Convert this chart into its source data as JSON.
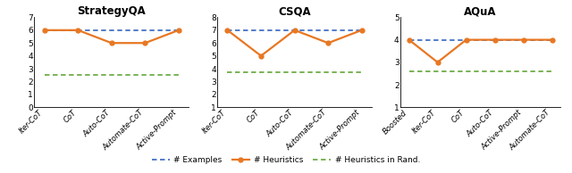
{
  "plots": [
    {
      "title": "StrategyQA",
      "x_labels": [
        "Iter-CoT",
        "CoT",
        "Auto-CoT",
        "Automate-CoT",
        "Active-Prompt"
      ],
      "heuristics": [
        6,
        6,
        5,
        5,
        6
      ],
      "examples": [
        6,
        6,
        6,
        6,
        6
      ],
      "heuristics_rand": [
        2.5,
        2.5,
        2.5,
        2.5,
        2.5
      ],
      "ylim": [
        0,
        7
      ],
      "yticks": [
        0,
        1,
        2,
        3,
        4,
        5,
        6,
        7
      ]
    },
    {
      "title": "CSQA",
      "x_labels": [
        "Iter-CoT",
        "CoT",
        "Auto-CoT",
        "Automate-CoT",
        "Active-Prompt"
      ],
      "heuristics": [
        7,
        5,
        7,
        6,
        7
      ],
      "examples": [
        7,
        7,
        7,
        7,
        7
      ],
      "heuristics_rand": [
        3.7,
        3.7,
        3.7,
        3.7,
        3.7
      ],
      "ylim": [
        1,
        8
      ],
      "yticks": [
        1,
        2,
        3,
        4,
        5,
        6,
        7,
        8
      ]
    },
    {
      "title": "AQuA",
      "x_labels": [
        "Boosted",
        "Iter-CoT",
        "CoT",
        "Auto-CoT",
        "Active-Prompt",
        "Automate-CoT"
      ],
      "heuristics": [
        4,
        3,
        4,
        4,
        4,
        4
      ],
      "examples": [
        4,
        4,
        4,
        4,
        4,
        4
      ],
      "heuristics_rand": [
        2.6,
        2.6,
        2.6,
        2.6,
        2.6,
        2.6
      ],
      "ylim": [
        1,
        5
      ],
      "yticks": [
        1,
        2,
        3,
        4,
        5
      ]
    }
  ],
  "colors": {
    "heuristics": "#E87722",
    "examples": "#4472C4",
    "heuristics_rand": "#70AD47"
  },
  "legend": {
    "examples_label": "# Examples",
    "heuristics_label": "# Heuristics",
    "heuristics_rand_label": "# Heuristics in Rand."
  },
  "figsize": [
    6.4,
    1.94
  ],
  "dpi": 100
}
